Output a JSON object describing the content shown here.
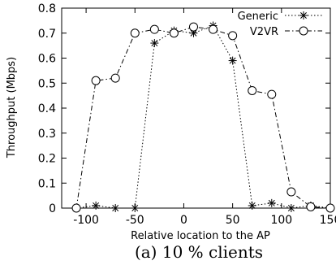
{
  "chart_data": {
    "type": "line",
    "xlabel": "Relative location to the AP",
    "ylabel": "Throughput (Mbps)",
    "caption": "(a) 10 % clients",
    "xlim": [
      -125,
      150
    ],
    "ylim": [
      0,
      0.8
    ],
    "xticks": [
      -100,
      -50,
      0,
      50,
      100,
      150
    ],
    "yticks": [
      0,
      0.1,
      0.2,
      0.3,
      0.4,
      0.5,
      0.6,
      0.7,
      0.8
    ],
    "legend_position": "top-right",
    "series": [
      {
        "name": "Generic",
        "marker": "asterisk",
        "line": "dotted",
        "points": [
          [
            -110,
            0.0
          ],
          [
            -90,
            0.01
          ],
          [
            -70,
            0.0
          ],
          [
            -50,
            0.0
          ],
          [
            -30,
            0.66
          ],
          [
            -10,
            0.71
          ],
          [
            10,
            0.7
          ],
          [
            30,
            0.73
          ],
          [
            50,
            0.59
          ],
          [
            70,
            0.01
          ],
          [
            90,
            0.02
          ],
          [
            110,
            0.0
          ],
          [
            130,
            0.01
          ],
          [
            150,
            0.0
          ]
        ]
      },
      {
        "name": "V2VR",
        "marker": "circle",
        "line": "dashdot",
        "points": [
          [
            -110,
            0.0
          ],
          [
            -90,
            0.51
          ],
          [
            -70,
            0.52
          ],
          [
            -50,
            0.7
          ],
          [
            -30,
            0.715
          ],
          [
            -10,
            0.7
          ],
          [
            10,
            0.725
          ],
          [
            30,
            0.715
          ],
          [
            50,
            0.69
          ],
          [
            70,
            0.47
          ],
          [
            90,
            0.455
          ],
          [
            110,
            0.065
          ],
          [
            130,
            0.005
          ],
          [
            150,
            0.0
          ]
        ]
      }
    ]
  }
}
